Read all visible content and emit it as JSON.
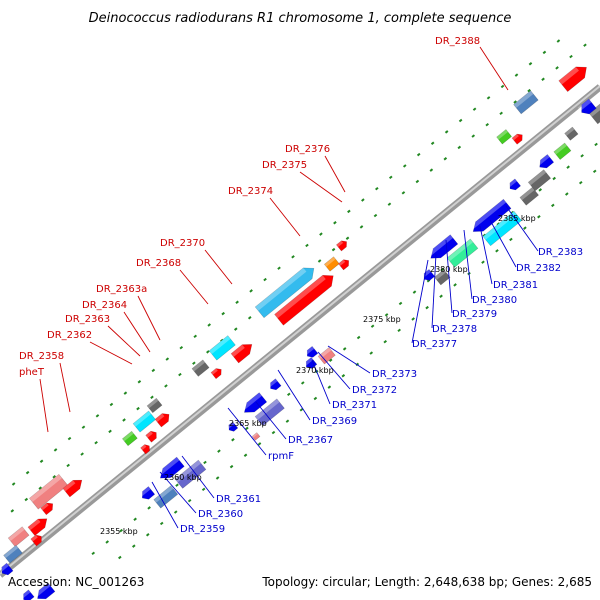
{
  "title": "Deinococcus radiodurans R1 chromosome 1, complete sequence",
  "footer": {
    "accession": "Accession: NC_001263",
    "topology": "Topology: circular; Length: 2,648,638 bp; Genes: 2,685"
  },
  "ticks": [
    "2355 kbp",
    "2360 kbp",
    "2365 kbp",
    "2370 kbp",
    "2375 kbp",
    "2380 kbp",
    "2385 kbp"
  ],
  "gene_labels_forward": [
    "DR_2388",
    "DR_2376",
    "DR_2375",
    "DR_2374",
    "DR_2370",
    "DR_2368",
    "DR_2363a",
    "DR_2364",
    "DR_2363",
    "DR_2362",
    "DR_2358",
    "pheT"
  ],
  "gene_labels_reverse": [
    "DR_2383",
    "DR_2382",
    "DR_2381",
    "DR_2380",
    "DR_2379",
    "DR_2378",
    "DR_2377",
    "DR_2373",
    "DR_2372",
    "DR_2371",
    "DR_2369",
    "DR_2367",
    "rpmF",
    "DR_2361",
    "DR_2360",
    "DR_2359"
  ],
  "colors": {
    "forward_gene": "#ff0000",
    "reverse_gene": "#0000ee",
    "backbone": "#a0a0a0",
    "tick": "#228822",
    "label_forward": "#cc0000",
    "label_reverse": "#0000cc",
    "cyan_gene": "#00e5ff",
    "lightblue_gene": "#33bbee",
    "orange_gene": "#ff8c00",
    "pink_gene": "#f08080",
    "green_gene": "#44cc22",
    "gray_gene": "#666666",
    "slateblue_gene": "#6666cc",
    "steelblue_gene": "#4f81bd",
    "mint_gene": "#33ee99"
  }
}
